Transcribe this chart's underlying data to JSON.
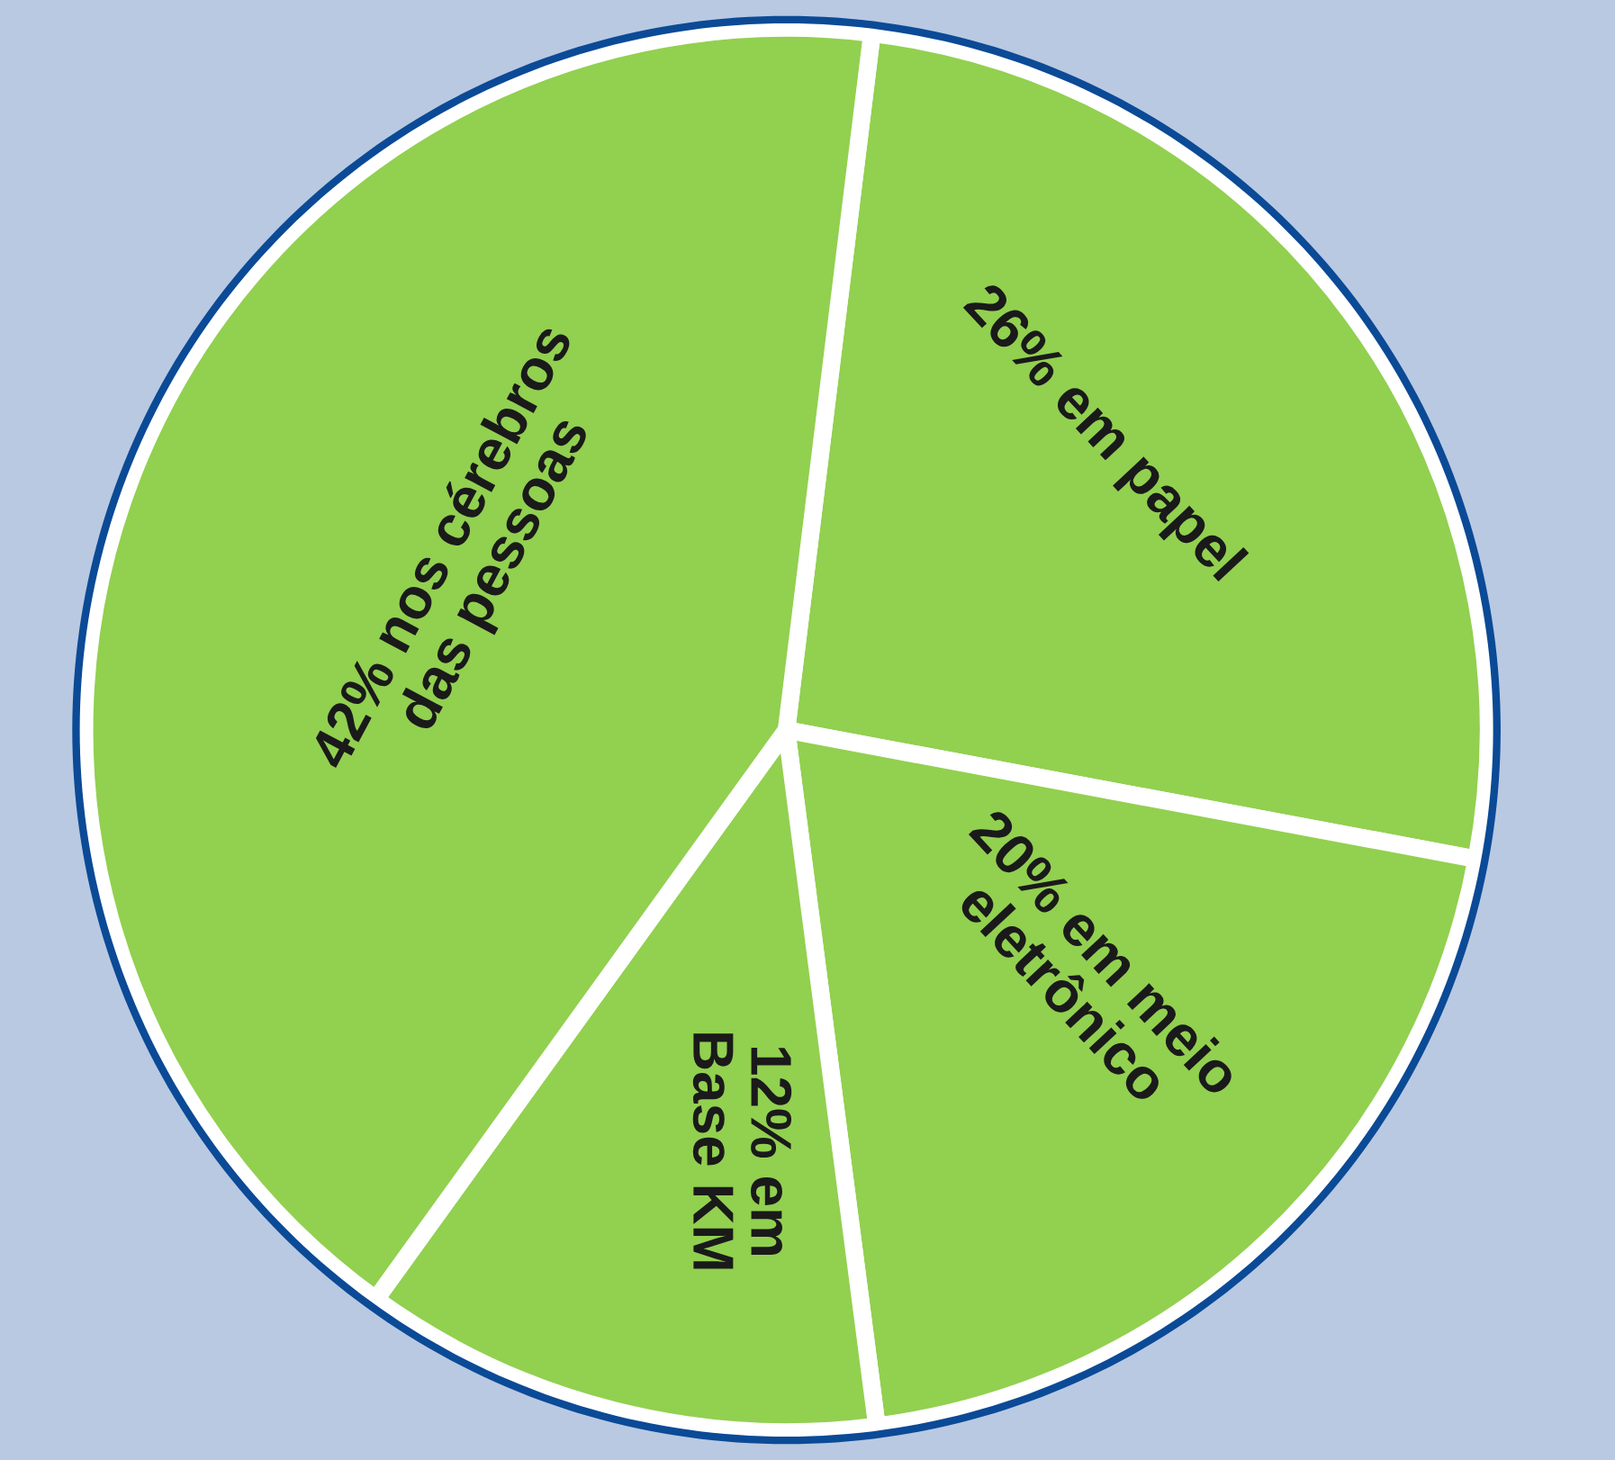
{
  "chart_data": {
    "type": "pie",
    "categories": [
      "em papel",
      "em meio\neletrônico",
      "em\nBase KM",
      "nos cérebros\ndas pessoas"
    ],
    "values": [
      26,
      20,
      12,
      42
    ],
    "value_labels": [
      "26%",
      "20%",
      "12%",
      "42%"
    ],
    "colors": [
      "#92d050",
      "#92d050",
      "#92d050",
      "#92d050"
    ]
  }
}
